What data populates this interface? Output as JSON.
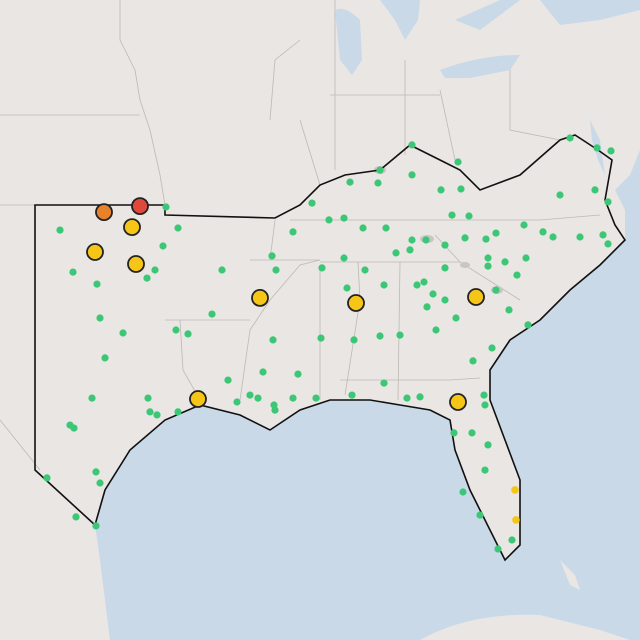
{
  "map": {
    "stations": {
      "color": "#3cc777",
      "points": [
        [
          -102,
          36.33
        ],
        [
          -101.35,
          34.93
        ],
        [
          -100.15,
          34.53
        ],
        [
          -100,
          33.4
        ],
        [
          -98.85,
          32.9
        ],
        [
          -99.75,
          32.07
        ],
        [
          -100.4,
          30.73
        ],
        [
          -101.5,
          29.83
        ],
        [
          -101.3,
          29.73
        ],
        [
          -97.6,
          30.73
        ],
        [
          -97.5,
          30.27
        ],
        [
          -97.15,
          30.17
        ],
        [
          -96.1,
          30.27
        ],
        [
          -96.2,
          33
        ],
        [
          -95.6,
          32.87
        ],
        [
          -96.1,
          36.4
        ],
        [
          -96.85,
          35.8
        ],
        [
          -97.25,
          35
        ],
        [
          -94.4,
          33.53
        ],
        [
          -93.9,
          35
        ],
        [
          -102.65,
          28.07
        ],
        [
          -100.2,
          28.27
        ],
        [
          -100,
          27.9
        ],
        [
          -101.2,
          26.77
        ],
        [
          -100.2,
          26.47
        ],
        [
          -97.65,
          34.73
        ],
        [
          -96.7,
          37.1
        ],
        [
          -90.35,
          36.27
        ],
        [
          -91.4,
          35.47
        ],
        [
          -91.2,
          35
        ],
        [
          -91.35,
          32.67
        ],
        [
          -91.85,
          31.6
        ],
        [
          -92.5,
          30.83
        ],
        [
          -92.1,
          30.73
        ],
        [
          -91.3,
          30.5
        ],
        [
          -91.25,
          30.33
        ],
        [
          -93.15,
          30.6
        ],
        [
          -93.6,
          31.33
        ],
        [
          -90.35,
          30.73
        ],
        [
          -90.1,
          31.53
        ],
        [
          -88.9,
          35.07
        ],
        [
          -87.8,
          35.4
        ],
        [
          -86.75,
          35
        ],
        [
          -85.8,
          34.5
        ],
        [
          -87.65,
          34.4
        ],
        [
          -88.95,
          32.73
        ],
        [
          -87.3,
          32.67
        ],
        [
          -86,
          32.8
        ],
        [
          -85,
          32.83
        ],
        [
          -87.4,
          30.83
        ],
        [
          -85.8,
          31.23
        ],
        [
          -89.2,
          30.73
        ],
        [
          -88.55,
          36.67
        ],
        [
          -87.8,
          36.73
        ],
        [
          -86.85,
          36.4
        ],
        [
          -85.7,
          36.4
        ],
        [
          -85.2,
          35.57
        ],
        [
          -84.5,
          35.67
        ],
        [
          -86,
          38.33
        ],
        [
          -87.5,
          37.93
        ],
        [
          -86.1,
          37.9
        ],
        [
          -84.4,
          38.17
        ],
        [
          -84.4,
          39.17
        ],
        [
          -82.95,
          37.67
        ],
        [
          -82.1,
          38.6
        ],
        [
          -81.95,
          37.7
        ],
        [
          -89.4,
          37.23
        ],
        [
          -84.15,
          34.5
        ],
        [
          -83.8,
          34.6
        ],
        [
          -83.35,
          34.2
        ],
        [
          -82.75,
          34
        ],
        [
          -83.65,
          33.77
        ],
        [
          -83.2,
          33
        ],
        [
          -82.2,
          33.4
        ],
        [
          -80.2,
          34.33
        ],
        [
          -79.55,
          33.67
        ],
        [
          -79.15,
          34.83
        ],
        [
          -80.6,
          35.4
        ],
        [
          -79.75,
          35.27
        ],
        [
          -78.7,
          35.4
        ],
        [
          -77.35,
          36.1
        ],
        [
          -76,
          36.1
        ],
        [
          -74.85,
          36.17
        ],
        [
          -74.6,
          35.87
        ],
        [
          -78.8,
          36.5
        ],
        [
          -77,
          37.5
        ],
        [
          -75.25,
          37.67
        ],
        [
          -74.6,
          37.27
        ],
        [
          -74.45,
          38.97
        ],
        [
          -75.15,
          39.07
        ],
        [
          -76.5,
          39.4
        ],
        [
          -80.7,
          36.03
        ],
        [
          -81.75,
          36.07
        ],
        [
          -83.7,
          36
        ],
        [
          -84.4,
          36
        ],
        [
          -82.75,
          35.83
        ],
        [
          -81.55,
          36.8
        ],
        [
          -80.2,
          36.23
        ],
        [
          -78.6,
          33.17
        ],
        [
          -80.4,
          32.4
        ],
        [
          -81.35,
          31.97
        ],
        [
          -84.65,
          30.73
        ],
        [
          -84,
          30.77
        ],
        [
          -80.8,
          30.83
        ],
        [
          -80.75,
          30.5
        ],
        [
          -82.3,
          29.57
        ],
        [
          -81.4,
          29.57
        ],
        [
          -80.6,
          29.17
        ],
        [
          -80.75,
          28.33
        ],
        [
          -81.85,
          27.6
        ],
        [
          -81,
          26.83
        ],
        [
          -80.1,
          25.7
        ],
        [
          -79.4,
          26
        ],
        [
          -82.75,
          35.07
        ],
        [
          -80.6,
          35.13
        ],
        [
          -82.4,
          36.83
        ],
        [
          -77.85,
          36.27
        ]
      ]
    },
    "coastal_alerts": {
      "color": "#f5c518",
      "points": [
        [
          -79.25,
          27.67
        ],
        [
          -79.2,
          26.67
        ]
      ]
    },
    "alerts": [
      {
        "lon": -99.8,
        "lat": 36.93,
        "color": "#e8822a"
      },
      {
        "lon": -98.0,
        "lat": 37.13,
        "color": "#e0483c"
      },
      {
        "lon": -98.4,
        "lat": 36.43,
        "color": "#f5c518"
      },
      {
        "lon": -100.25,
        "lat": 35.6,
        "color": "#f5c518"
      },
      {
        "lon": -98.2,
        "lat": 35.2,
        "color": "#f5c518"
      },
      {
        "lon": -92.0,
        "lat": 34.07,
        "color": "#f5c518"
      },
      {
        "lon": -87.2,
        "lat": 33.9,
        "color": "#f5c518"
      },
      {
        "lon": -81.2,
        "lat": 34.1,
        "color": "#f5c518"
      },
      {
        "lon": -95.1,
        "lat": 30.7,
        "color": "#f5c518"
      },
      {
        "lon": -82.1,
        "lat": 30.6,
        "color": "#f5c518"
      }
    ]
  }
}
